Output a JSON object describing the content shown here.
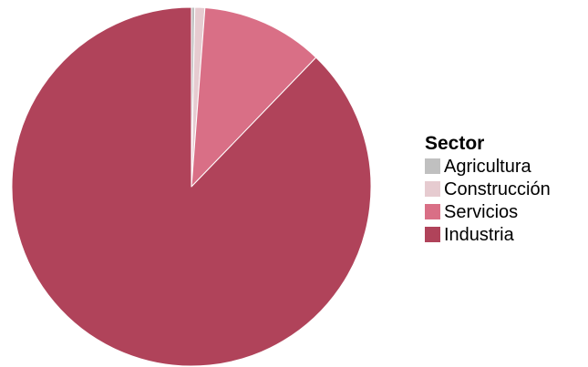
{
  "chart_data": {
    "type": "pie",
    "title": "",
    "start_angle_deg": 0,
    "direction": "clockwise",
    "slice_border_color": "#ffffff",
    "legend": {
      "title": "Sector",
      "placement": "right"
    },
    "slices": [
      {
        "label": "Agricultura",
        "value": 0.3,
        "color": "#c0c0c0"
      },
      {
        "label": "Construcción",
        "value": 0.9,
        "color": "#e6cbd0"
      },
      {
        "label": "Servicios",
        "value": 11.0,
        "color": "#d96f86"
      },
      {
        "label": "Industria",
        "value": 87.8,
        "color": "#b0435a"
      }
    ]
  }
}
